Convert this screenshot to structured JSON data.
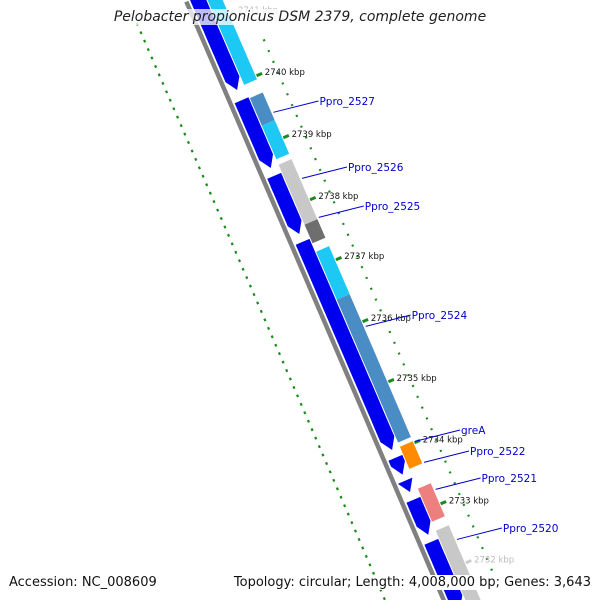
{
  "title": "Pelobacter propionicus DSM 2379, complete genome",
  "footer": {
    "accession": "Accession: NC_008609",
    "summary": "Topology: circular; Length: 4,008,000 bp; Genes: 3,643"
  },
  "scale_labels": [
    {
      "text": "2741 kbp",
      "faded": true
    },
    {
      "text": "2740 kbp",
      "faded": false
    },
    {
      "text": "2739 kbp",
      "faded": false
    },
    {
      "text": "2738 kbp",
      "faded": false
    },
    {
      "text": "2737 kbp",
      "faded": false
    },
    {
      "text": "2736 kbp",
      "faded": false
    },
    {
      "text": "2735 kbp",
      "faded": false
    },
    {
      "text": "2734 kbp",
      "faded": false
    },
    {
      "text": "2733 kbp",
      "faded": false
    },
    {
      "text": "2732 kbp",
      "faded": true
    }
  ],
  "gene_labels": [
    "Ppro_2527",
    "Ppro_2526",
    "Ppro_2525",
    "Ppro_2524",
    "greA",
    "Ppro_2522",
    "Ppro_2521",
    "Ppro_2520"
  ],
  "colors": {
    "cds_strand": "#0000ee",
    "feature_cyan": "#1ec8f5",
    "feature_steelblue": "#4a8cc4",
    "feature_gray": "#c8c8c8",
    "feature_darkgray": "#6e6e6e",
    "feature_orange": "#ff8c00",
    "feature_pink": "#ee7f7f",
    "gc_dots": "#1a8a1a",
    "backbone": "#808080",
    "label": "#0000cc"
  }
}
